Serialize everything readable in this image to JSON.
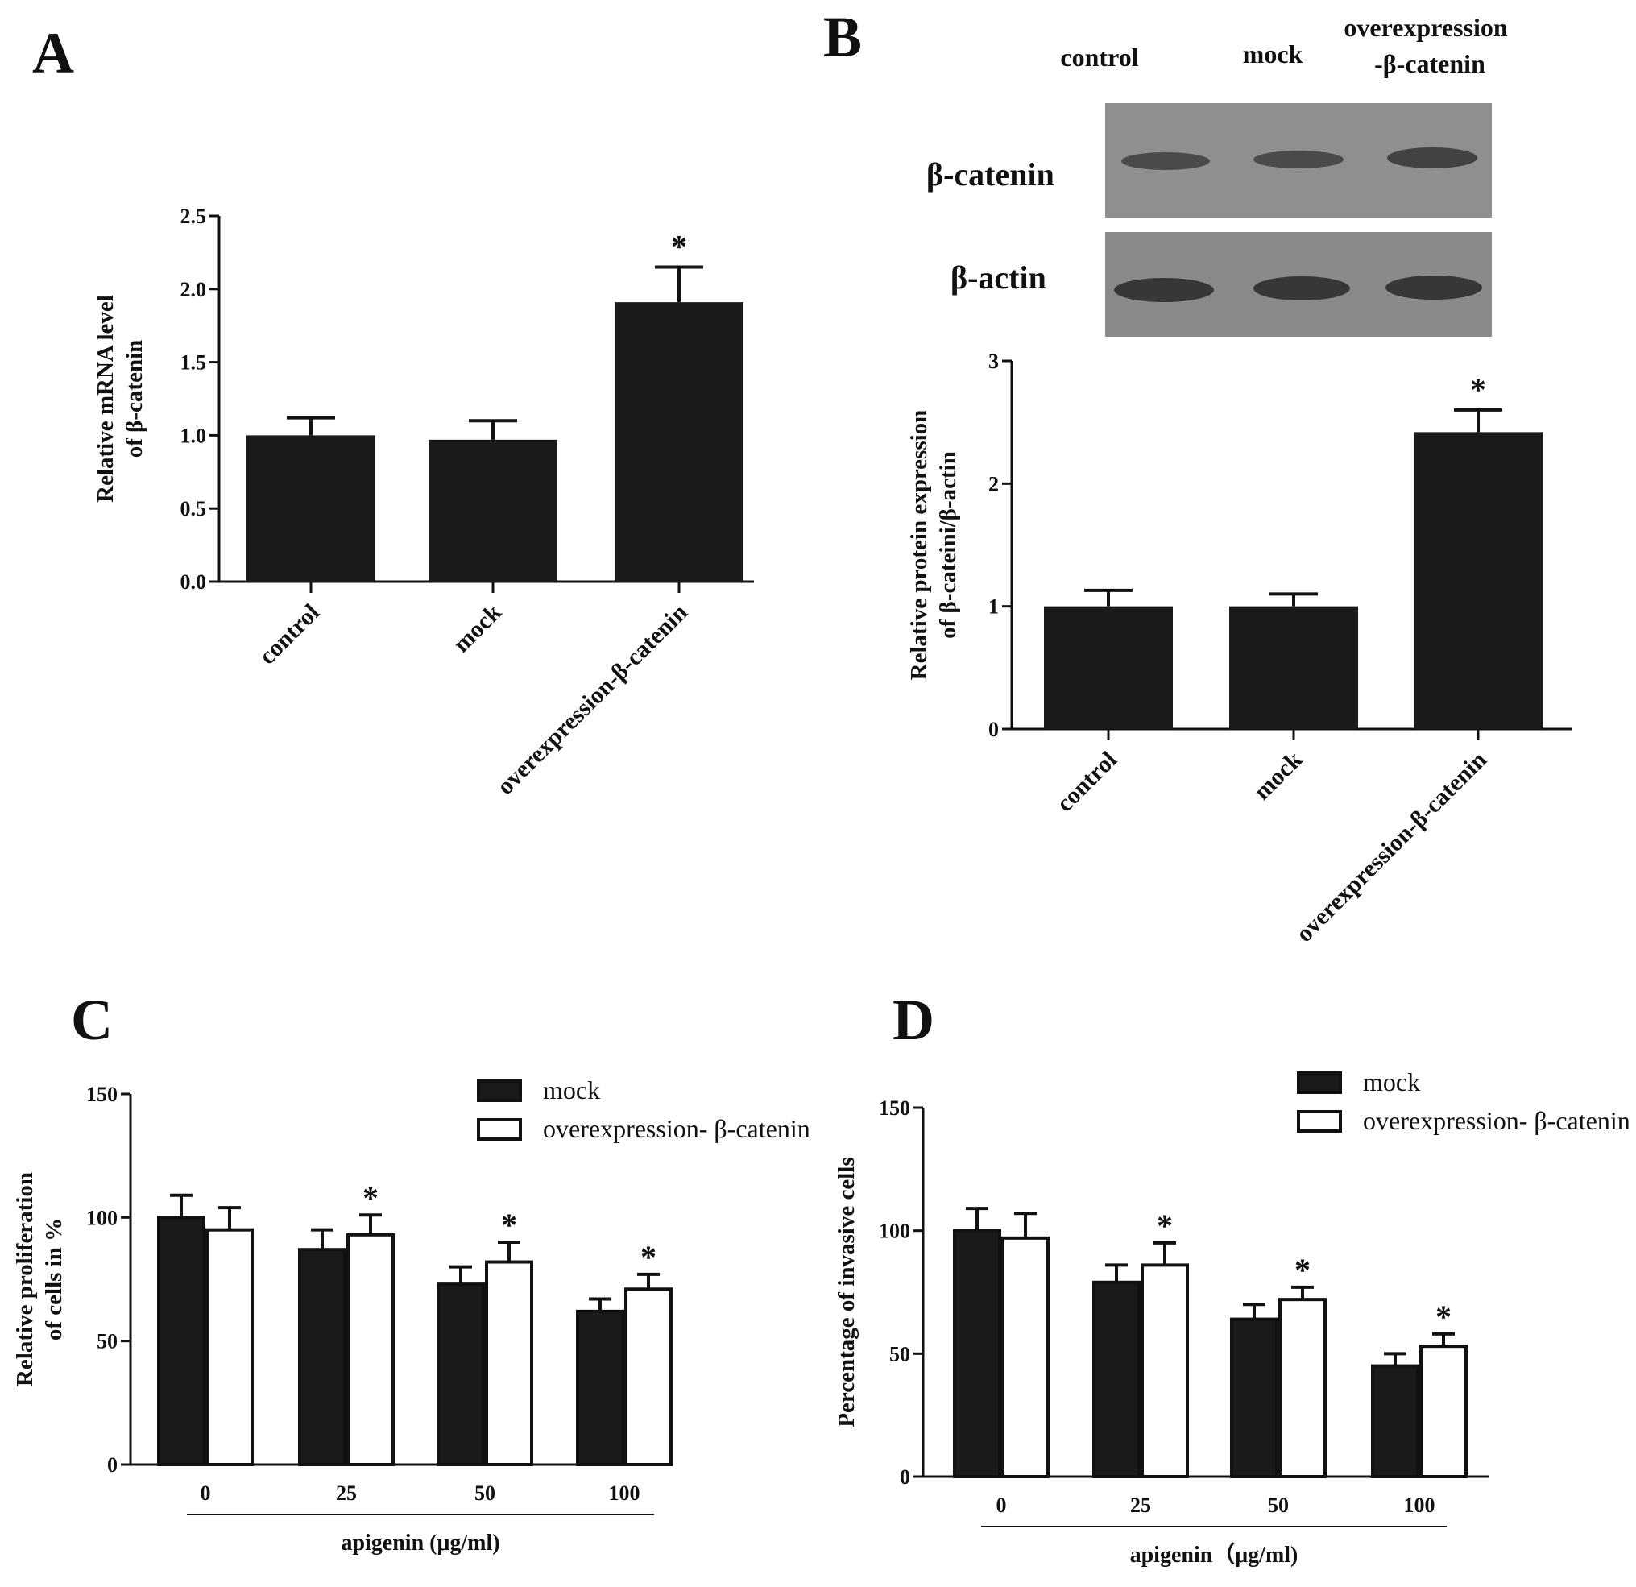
{
  "panels": {
    "A": {
      "letter": "A",
      "chart_data": {
        "type": "bar",
        "categories": [
          "control",
          "mock",
          "overexpression-β-catenin"
        ],
        "values": [
          1.0,
          0.97,
          1.91
        ],
        "errors": [
          0.12,
          0.13,
          0.24
        ],
        "significance": [
          "",
          "",
          "*"
        ],
        "ylabel": [
          "Relative mRNA level",
          "of β-catenin"
        ],
        "ylim": [
          0,
          2.5
        ],
        "yticks": [
          "0.0",
          "0.5",
          "1.0",
          "1.5",
          "2.0",
          "2.5"
        ]
      }
    },
    "B": {
      "letter": "B",
      "blot": {
        "lanes": [
          "control",
          "mock",
          "overexpression",
          "-β-catenin"
        ],
        "rows": [
          "β-catenin",
          "β-actin"
        ]
      },
      "chart_data": {
        "type": "bar",
        "categories": [
          "control",
          "mock",
          "overexpression-β-catenin"
        ],
        "values": [
          1.0,
          1.0,
          2.42
        ],
        "errors": [
          0.13,
          0.1,
          0.18
        ],
        "significance": [
          "",
          "",
          "*"
        ],
        "ylabel": [
          "Relative protein expression",
          "of β-cateini/β-actin"
        ],
        "ylim": [
          0,
          3
        ],
        "yticks": [
          "0",
          "1",
          "2",
          "3"
        ]
      }
    },
    "C": {
      "letter": "C",
      "chart_data": {
        "type": "bar",
        "categories": [
          "0",
          "25",
          "50",
          "100"
        ],
        "series": [
          {
            "name": "mock",
            "values": [
              100,
              87,
              73,
              62
            ],
            "errors": [
              9,
              8,
              7,
              5
            ],
            "fill": "#1a1a1a"
          },
          {
            "name": "overexpression- β-catenin",
            "values": [
              95,
              93,
              82,
              71
            ],
            "errors": [
              9,
              8,
              8,
              6
            ],
            "fill": "#ffffff"
          }
        ],
        "significance": [
          "",
          "*",
          "*",
          "*"
        ],
        "xlabel": "apigenin (μg/ml)",
        "ylabel": [
          "Relative proliferation",
          "of cells in %"
        ],
        "ylim": [
          0,
          150
        ],
        "yticks": [
          "0",
          "50",
          "100",
          "150"
        ]
      }
    },
    "D": {
      "letter": "D",
      "chart_data": {
        "type": "bar",
        "categories": [
          "0",
          "25",
          "50",
          "100"
        ],
        "series": [
          {
            "name": "mock",
            "values": [
              100,
              79,
              64,
              45
            ],
            "errors": [
              9,
              7,
              6,
              5
            ],
            "fill": "#1a1a1a"
          },
          {
            "name": "overexpression- β-catenin",
            "values": [
              97,
              86,
              72,
              53
            ],
            "errors": [
              10,
              9,
              5,
              5
            ],
            "fill": "#ffffff"
          }
        ],
        "significance": [
          "",
          "*",
          "*",
          "*"
        ],
        "xlabel": "apigenin（μg/ml)",
        "ylabel": [
          "Percentage of invasive cells"
        ],
        "ylim": [
          0,
          150
        ],
        "yticks": [
          "0",
          "50",
          "100",
          "150"
        ]
      }
    }
  }
}
